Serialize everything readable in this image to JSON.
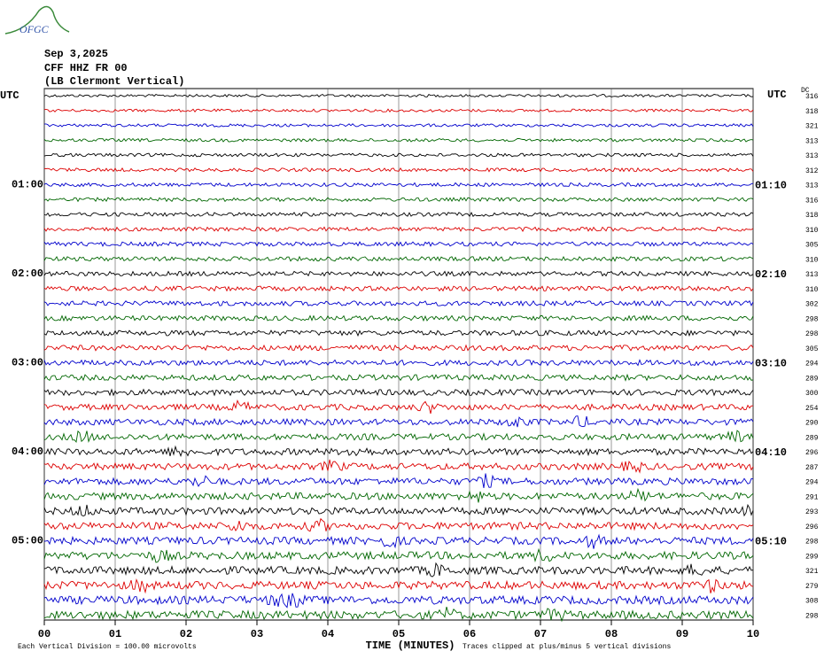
{
  "logo": "OFGC",
  "header": {
    "date": "Sep 3,2025",
    "station": "CFF HHZ FR 00",
    "location": "(LB  Clermont Vertical)"
  },
  "axis": {
    "left_title": "UTC",
    "right_title": "UTC",
    "dc_title": "DC",
    "x_title": "TIME (MINUTES)",
    "x_ticks": [
      "00",
      "01",
      "02",
      "03",
      "04",
      "05",
      "06",
      "07",
      "08",
      "09",
      "10"
    ]
  },
  "trace_colors": [
    "#000000",
    "#dd0000",
    "#0000cc",
    "#006600"
  ],
  "rows": [
    {
      "dc": 316,
      "left": "UTC"
    },
    {
      "dc": 318
    },
    {
      "dc": 321
    },
    {
      "dc": 313
    },
    {
      "dc": 313
    },
    {
      "dc": 312
    },
    {
      "dc": 313,
      "left": "01:00",
      "right": "01:10"
    },
    {
      "dc": 316
    },
    {
      "dc": 318
    },
    {
      "dc": 310
    },
    {
      "dc": 305
    },
    {
      "dc": 310
    },
    {
      "dc": 313,
      "left": "02:00",
      "right": "02:10"
    },
    {
      "dc": 310
    },
    {
      "dc": 302
    },
    {
      "dc": 298
    },
    {
      "dc": 298
    },
    {
      "dc": 305
    },
    {
      "dc": 294,
      "left": "03:00",
      "right": "03:10"
    },
    {
      "dc": 289
    },
    {
      "dc": 300
    },
    {
      "dc": 254
    },
    {
      "dc": 290
    },
    {
      "dc": 289
    },
    {
      "dc": 296,
      "left": "04:00",
      "right": "04:10"
    },
    {
      "dc": 287
    },
    {
      "dc": 294
    },
    {
      "dc": 291
    },
    {
      "dc": 293
    },
    {
      "dc": 296
    },
    {
      "dc": 298,
      "left": "05:00",
      "right": "05:10"
    },
    {
      "dc": 299
    },
    {
      "dc": 321
    },
    {
      "dc": 279
    },
    {
      "dc": 308
    },
    {
      "dc": 298
    }
  ],
  "footer": {
    "scale": "Each Vertical Division =  100.00 microvolts",
    "clip": "Traces clipped at plus/minus 5 vertical divisions"
  }
}
